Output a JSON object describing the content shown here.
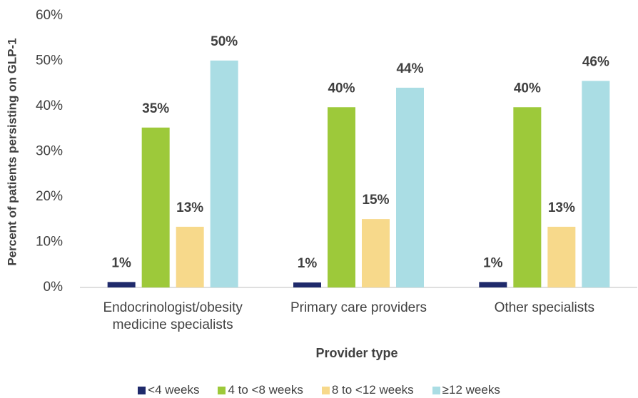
{
  "chart_data": {
    "type": "bar",
    "x_label": "Provider type",
    "y_label": "Percent of patients persisting on GLP-1",
    "categories": [
      "Endocrinologist/obesity medicine specialists",
      "Primary care providers",
      "Other specialists"
    ],
    "series": [
      {
        "name": "<4 weeks",
        "color": "#1f2a6b",
        "values": [
          1.2,
          1.1,
          1.2
        ],
        "value_labels": [
          "1%",
          "1%",
          "1%"
        ]
      },
      {
        "name": "4 to <8 weeks",
        "color": "#9dc93a",
        "values": [
          35.3,
          39.8,
          39.8
        ],
        "value_labels": [
          "35%",
          "40%",
          "40%"
        ]
      },
      {
        "name": "8 to <12 weeks",
        "color": "#f7d98b",
        "values": [
          13.4,
          15.1,
          13.4
        ],
        "value_labels": [
          "13%",
          "15%",
          "13%"
        ]
      },
      {
        "name": "≥12 weeks",
        "color": "#aadde4",
        "values": [
          50.1,
          44.1,
          45.6
        ],
        "value_labels": [
          "50%",
          "44%",
          "46%"
        ]
      }
    ],
    "ylim": [
      0,
      60
    ],
    "yticks": [
      {
        "value": 0,
        "label": "0%"
      },
      {
        "value": 10,
        "label": "10%"
      },
      {
        "value": 20,
        "label": "20%"
      },
      {
        "value": 30,
        "label": "30%"
      },
      {
        "value": 40,
        "label": "40%"
      },
      {
        "value": 50,
        "label": "50%"
      },
      {
        "value": 60,
        "label": "60%"
      }
    ],
    "grid": false,
    "legend": "bottom"
  }
}
